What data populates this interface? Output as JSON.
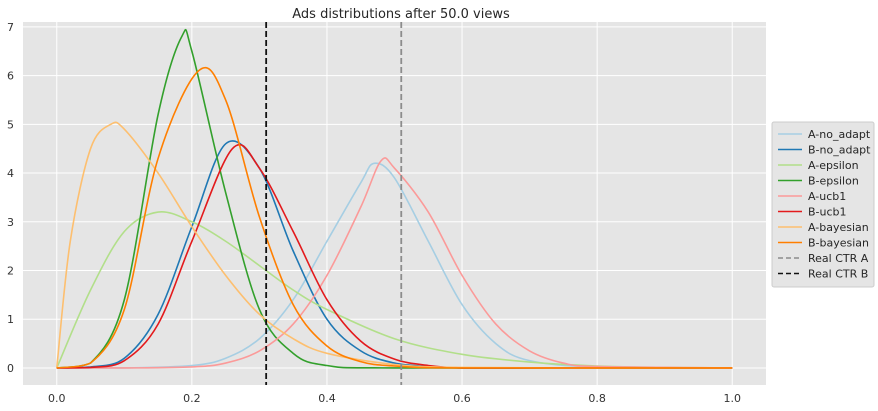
{
  "chart_data": {
    "type": "line",
    "title": "Ads distributions after 50.0 views",
    "xlabel": "",
    "ylabel": "",
    "xlim": [
      -0.05,
      1.05
    ],
    "ylim": [
      -0.35,
      7.1
    ],
    "x_ticks": [
      0.0,
      0.2,
      0.4,
      0.6,
      0.8,
      1.0
    ],
    "x_tick_labels": [
      "0.0",
      "0.2",
      "0.4",
      "0.6",
      "0.8",
      "1.0"
    ],
    "y_ticks": [
      0,
      1,
      2,
      3,
      4,
      5,
      6,
      7
    ],
    "y_tick_labels": [
      "0",
      "1",
      "2",
      "3",
      "4",
      "5",
      "6",
      "7"
    ],
    "grid": true,
    "legend_position": "right, outside plot area",
    "series": [
      {
        "name": "A-no_adapt",
        "color": "#a6cee3",
        "style": "solid",
        "x": [
          0.0,
          0.1,
          0.2,
          0.25,
          0.3,
          0.35,
          0.4,
          0.45,
          0.47,
          0.5,
          0.55,
          0.6,
          0.65,
          0.7,
          0.8,
          1.0
        ],
        "y": [
          0.0,
          0.0,
          0.05,
          0.2,
          0.6,
          1.4,
          2.6,
          3.8,
          4.2,
          3.9,
          2.6,
          1.3,
          0.5,
          0.15,
          0.02,
          0.0
        ]
      },
      {
        "name": "B-no_adapt",
        "color": "#1f78b4",
        "style": "solid",
        "x": [
          0.0,
          0.05,
          0.1,
          0.15,
          0.2,
          0.25,
          0.3,
          0.35,
          0.4,
          0.45,
          0.5,
          0.55,
          0.6,
          0.7,
          1.0
        ],
        "y": [
          0.0,
          0.02,
          0.2,
          1.1,
          2.9,
          4.6,
          4.1,
          2.4,
          1.0,
          0.35,
          0.1,
          0.03,
          0.0,
          0.0,
          0.0
        ]
      },
      {
        "name": "A-epsilon",
        "color": "#b2df8a",
        "style": "solid",
        "x": [
          0.0,
          0.05,
          0.1,
          0.15,
          0.2,
          0.25,
          0.3,
          0.35,
          0.4,
          0.5,
          0.6,
          0.7,
          0.8,
          0.9,
          1.0
        ],
        "y": [
          0.0,
          1.6,
          2.8,
          3.2,
          3.0,
          2.6,
          2.1,
          1.6,
          1.2,
          0.6,
          0.28,
          0.12,
          0.04,
          0.01,
          0.0
        ]
      },
      {
        "name": "B-epsilon",
        "color": "#33a02c",
        "style": "solid",
        "x": [
          0.0,
          0.05,
          0.1,
          0.15,
          0.185,
          0.2,
          0.25,
          0.3,
          0.35,
          0.4,
          0.5,
          1.0
        ],
        "y": [
          0.0,
          0.1,
          1.4,
          5.2,
          6.8,
          6.5,
          3.6,
          1.2,
          0.3,
          0.05,
          0.0,
          0.0
        ]
      },
      {
        "name": "A-ucb1",
        "color": "#fb9a99",
        "style": "solid",
        "x": [
          0.0,
          0.1,
          0.2,
          0.25,
          0.3,
          0.35,
          0.4,
          0.45,
          0.48,
          0.5,
          0.55,
          0.6,
          0.65,
          0.7,
          0.75,
          0.8,
          1.0
        ],
        "y": [
          0.0,
          0.0,
          0.02,
          0.1,
          0.35,
          0.9,
          1.9,
          3.3,
          4.25,
          4.1,
          3.2,
          1.9,
          0.9,
          0.35,
          0.1,
          0.03,
          0.0
        ]
      },
      {
        "name": "B-ucb1",
        "color": "#e31a1c",
        "style": "solid",
        "x": [
          0.0,
          0.05,
          0.1,
          0.15,
          0.2,
          0.26,
          0.3,
          0.35,
          0.4,
          0.45,
          0.5,
          0.55,
          0.6,
          0.7,
          1.0
        ],
        "y": [
          0.0,
          0.01,
          0.15,
          0.9,
          2.6,
          4.5,
          4.1,
          2.8,
          1.4,
          0.55,
          0.18,
          0.05,
          0.0,
          0.0,
          0.0
        ]
      },
      {
        "name": "A-bayesian",
        "color": "#fdbf6f",
        "style": "solid",
        "x": [
          0.0,
          0.02,
          0.05,
          0.08,
          0.1,
          0.15,
          0.2,
          0.25,
          0.3,
          0.35,
          0.4,
          0.5,
          0.6,
          0.8,
          1.0
        ],
        "y": [
          0.0,
          2.6,
          4.5,
          5.0,
          4.9,
          4.0,
          2.9,
          1.9,
          1.1,
          0.6,
          0.3,
          0.07,
          0.01,
          0.0,
          0.0
        ]
      },
      {
        "name": "B-bayesian",
        "color": "#ff7f00",
        "style": "solid",
        "x": [
          0.0,
          0.05,
          0.1,
          0.15,
          0.21,
          0.25,
          0.3,
          0.35,
          0.4,
          0.45,
          0.5,
          0.6,
          1.0
        ],
        "y": [
          0.0,
          0.1,
          1.2,
          4.3,
          6.1,
          5.5,
          3.1,
          1.3,
          0.45,
          0.13,
          0.04,
          0.0,
          0.0
        ]
      }
    ],
    "vlines": [
      {
        "name": "Real CTR A",
        "x": 0.51,
        "color": "#8c8c8c",
        "style": "dashed"
      },
      {
        "name": "Real CTR B",
        "x": 0.31,
        "color": "#111111",
        "style": "dashed"
      }
    ]
  }
}
